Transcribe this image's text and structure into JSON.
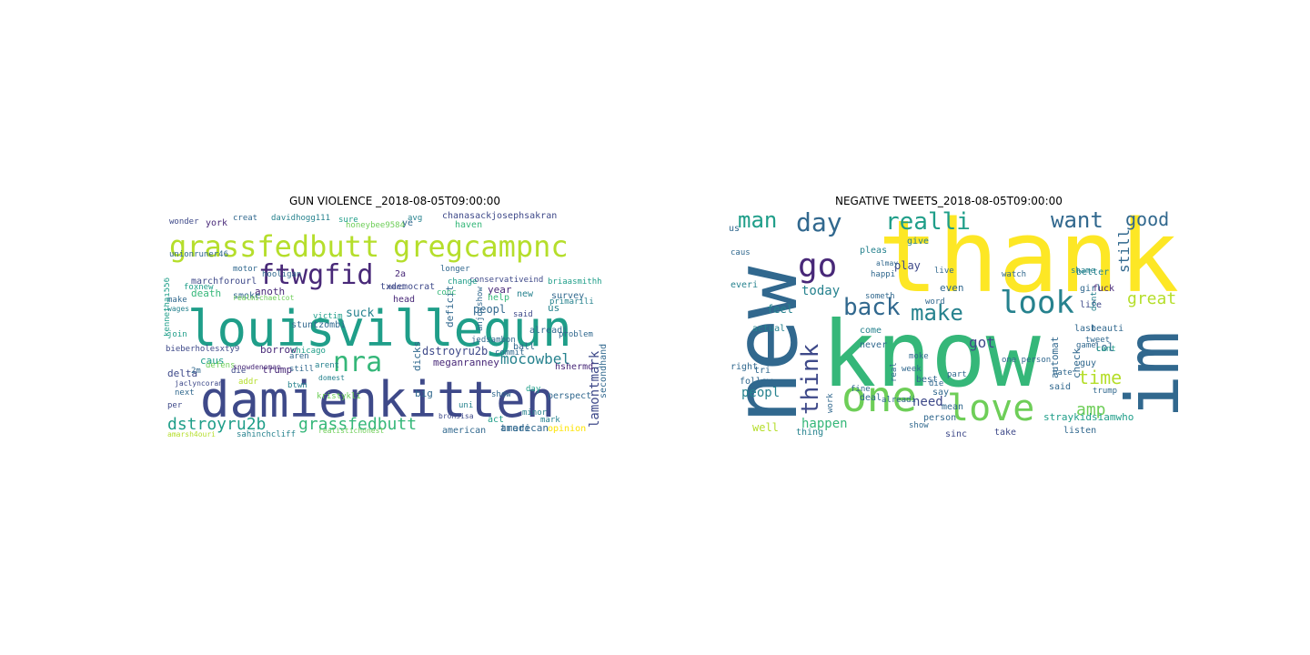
{
  "figure": {
    "left_title": "GUN VIOLENCE _2018-08-05T09:00:00",
    "right_title": "NEGATIVE TWEETS_2018-08-05T09:00:00"
  },
  "left_cloud": {
    "words": [
      "louisvillegun",
      "damienkitten",
      "grassfedbutt",
      "gregcampnc",
      "ftwgfid",
      "nra",
      "dstroyru2b",
      "grassfedbutt",
      "mocowbel",
      "lamontmark",
      "dstroyru2b",
      "suck",
      "peopl",
      "deficit",
      "dicks",
      "meganranney",
      "death",
      "trump",
      "borrow",
      "delta",
      "caus",
      "anoth",
      "year",
      "us",
      "trade",
      "american",
      "opinion",
      "perspect",
      "commit",
      "survey",
      "help",
      "conservativeind",
      "txdemocrat",
      "marchforourl",
      "smoke",
      "josephsakran",
      "chanasack",
      "haven",
      "honeybee9584",
      "davidhogg111",
      "sure",
      "creat",
      "york",
      "wonder",
      "ye",
      "avg",
      "unionruner46",
      "hooligan",
      "2a",
      "motor",
      "mani",
      "foxnew",
      "head",
      "conc",
      "change",
      "stuntzombi",
      "victim",
      "chicago",
      "btwn",
      "kristykli",
      "aren",
      "arent",
      "still",
      "big",
      "domest",
      "bronsisa",
      "show",
      "act",
      "uni",
      "minor",
      "mark",
      "american",
      "opinion",
      "realistichonest",
      "sahinchcliff",
      "amarsh4ouri",
      "next",
      "per",
      "2m",
      "join",
      "wages",
      "make",
      "bieberholesxty9",
      "die",
      "addr",
      "defens",
      "snowdenoman",
      "jaclyncoran",
      "secondhand",
      "jedsambon",
      "problem",
      "alreadi",
      "new",
      "primarili",
      "said",
      "ball",
      "hshermd",
      "day",
      "briaasmithh",
      "kennethai556",
      "anjoyshow",
      "longer",
      "realmichaelcot"
    ],
    "palette": [
      "#fde725",
      "#b5de2b",
      "#6ece58",
      "#35b779",
      "#1f9e89",
      "#26828e",
      "#31688e",
      "#3e4989",
      "#482878",
      "#440154"
    ]
  },
  "right_cloud": {
    "words": [
      "thank",
      "new",
      "know",
      "im",
      "one",
      "love",
      "go",
      "look",
      "day",
      "man",
      "realli",
      "want",
      "good",
      "make",
      "back",
      "think",
      "time",
      "amp",
      "got",
      "great",
      "still",
      "happen",
      "need",
      "today",
      "peopl",
      "well",
      "thing",
      "sinc",
      "take",
      "straykidsiamwho",
      "said",
      "lol",
      "guy",
      "automat",
      "check",
      "last",
      "girl",
      "better",
      "fuck",
      "follow",
      "feel",
      "come",
      "actual",
      "pleas",
      "give",
      "play",
      "even",
      "never",
      "say",
      "mean",
      "person",
      "best",
      "week",
      "right",
      "tri",
      "everi",
      "caus",
      "us",
      "deal",
      "alreadi",
      "die",
      "show",
      "work",
      "moke",
      "real",
      "listen",
      "life",
      "game",
      "beauti",
      "tweet",
      "trump",
      "cant",
      "dont",
      "fine",
      "happi",
      "almay",
      "someth",
      "live",
      "watch",
      "part",
      "word",
      "one person",
      "hate",
      "shame",
      "friend"
    ],
    "palette": [
      "#fde725",
      "#b5de2b",
      "#6ece58",
      "#35b779",
      "#1f9e89",
      "#26828e",
      "#31688e",
      "#3e4989",
      "#482878",
      "#440154"
    ]
  }
}
